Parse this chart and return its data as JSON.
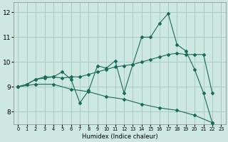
{
  "xlabel": "Humidex (Indice chaleur)",
  "bg_color": "#cce8e0",
  "grid_color": "#aaccc4",
  "line_color": "#1a6b5a",
  "xlim": [
    -0.5,
    23.5
  ],
  "ylim": [
    7.5,
    12.4
  ],
  "yticks": [
    8,
    9,
    10,
    11,
    12
  ],
  "xticks": [
    0,
    1,
    2,
    3,
    4,
    5,
    6,
    7,
    8,
    9,
    10,
    11,
    12,
    13,
    14,
    15,
    16,
    17,
    18,
    19,
    20,
    21,
    22,
    23
  ],
  "s1": [
    [
      0,
      9.0
    ],
    [
      1,
      9.1
    ],
    [
      2,
      9.3
    ],
    [
      3,
      9.35
    ],
    [
      4,
      9.4
    ],
    [
      5,
      9.6
    ],
    [
      6,
      9.3
    ],
    [
      7,
      8.35
    ],
    [
      8,
      8.85
    ],
    [
      9,
      9.85
    ],
    [
      10,
      9.75
    ],
    [
      11,
      10.05
    ],
    [
      12,
      8.75
    ],
    [
      13,
      9.9
    ],
    [
      14,
      11.0
    ],
    [
      15,
      11.0
    ],
    [
      16,
      11.55
    ],
    [
      17,
      11.95
    ],
    [
      18,
      10.7
    ],
    [
      19,
      10.45
    ],
    [
      20,
      9.7
    ],
    [
      21,
      8.75
    ],
    [
      22,
      7.55
    ]
  ],
  "s2": [
    [
      0,
      9.0
    ],
    [
      1,
      9.1
    ],
    [
      2,
      9.3
    ],
    [
      3,
      9.4
    ],
    [
      4,
      9.4
    ],
    [
      5,
      9.35
    ],
    [
      6,
      9.4
    ],
    [
      7,
      9.4
    ],
    [
      8,
      9.5
    ],
    [
      9,
      9.6
    ],
    [
      10,
      9.7
    ],
    [
      11,
      9.8
    ],
    [
      12,
      9.85
    ],
    [
      13,
      9.9
    ],
    [
      14,
      10.0
    ],
    [
      15,
      10.1
    ],
    [
      16,
      10.2
    ],
    [
      17,
      10.3
    ],
    [
      18,
      10.35
    ],
    [
      19,
      10.3
    ],
    [
      20,
      10.3
    ],
    [
      21,
      10.3
    ],
    [
      22,
      8.75
    ]
  ],
  "s3": [
    [
      0,
      9.0
    ],
    [
      2,
      9.1
    ],
    [
      4,
      9.1
    ],
    [
      6,
      8.9
    ],
    [
      8,
      8.8
    ],
    [
      10,
      8.6
    ],
    [
      12,
      8.5
    ],
    [
      14,
      8.3
    ],
    [
      16,
      8.15
    ],
    [
      18,
      8.05
    ],
    [
      20,
      7.85
    ],
    [
      22,
      7.55
    ]
  ]
}
